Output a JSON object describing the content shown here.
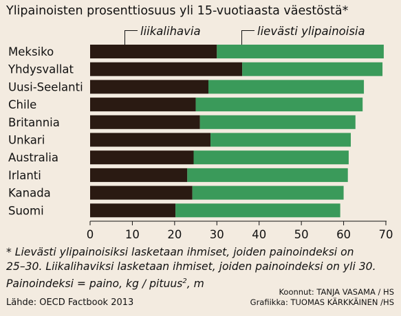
{
  "title": "Ylipainoisten prosenttiosuus yli 15-vuotiaasta väestöstä*",
  "legend": {
    "obese": "liikalihavia",
    "overweight": "lievästi ylipainoisia"
  },
  "colors": {
    "obese": "#2a1a12",
    "overweight": "#3a9a5a",
    "background": "#f3ebe0"
  },
  "chart_data": {
    "type": "bar",
    "orientation": "horizontal",
    "stacked": true,
    "categories": [
      "Meksiko",
      "Yhdysvallat",
      "Uusi-Seelanti",
      "Chile",
      "Britannia",
      "Unkari",
      "Australia",
      "Irlanti",
      "Kanada",
      "Suomi"
    ],
    "series": [
      {
        "name": "liikalihavia",
        "values": [
          30.0,
          36.0,
          28.0,
          25.0,
          26.0,
          28.5,
          24.5,
          23.0,
          24.2,
          20.2
        ]
      },
      {
        "name": "lievästi ylipainoisia",
        "values": [
          39.5,
          33.2,
          36.8,
          39.5,
          36.8,
          33.2,
          36.7,
          38.0,
          35.8,
          39.0
        ]
      }
    ],
    "xticks": [
      0,
      10,
      20,
      30,
      40,
      50,
      60,
      70
    ],
    "xlim": [
      0,
      70
    ],
    "title": "Ylipainoisten prosenttiosuus yli 15-vuotiaasta väestöstä*"
  },
  "footnote": {
    "line1": "* Lievästi ylipainoisiksi lasketaan ihmiset, joiden painoindeksi on",
    "line2": "25–30. Liikalihaviksi lasketaan ihmiset, joiden painoindeksi on yli 30.",
    "line3_pre": "Painoindeksi = paino, kg / pituus",
    "line3_sup": "2",
    "line3_post": ", m"
  },
  "source": "Lähde: OECD Factbook 2013",
  "credits": {
    "sources_by": "Koonnut: TANJA VASAMA / HS",
    "graphics_by": "Grafiikka: TUOMAS KÄRKKÄINEN /HS"
  }
}
